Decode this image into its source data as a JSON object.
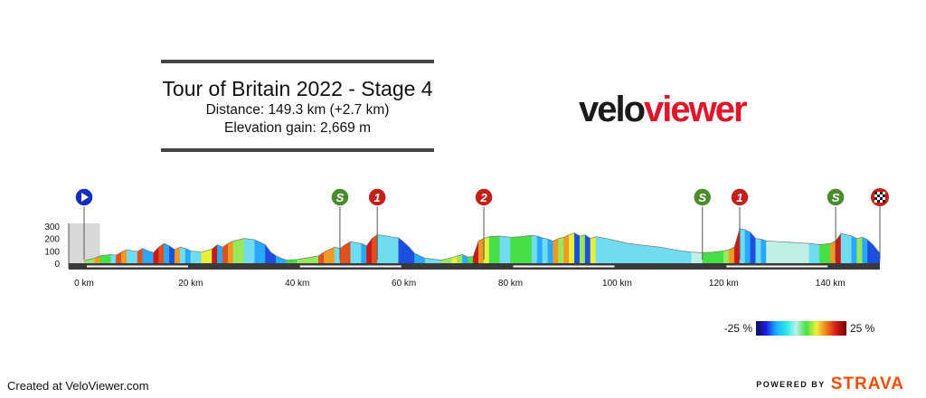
{
  "header": {
    "title": "Tour of Britain 2022 - Stage 4",
    "distance": "Distance: 149.3 km (+2.7 km)",
    "elevation": "Elevation gain: 2,669 m"
  },
  "logo": {
    "part1": "velo",
    "part2": "viewer",
    "colors": {
      "part1": "#1a1a1a",
      "part2": "#e0172b"
    }
  },
  "chart_data": {
    "type": "area",
    "title": "Tour of Britain 2022 - Stage 4",
    "x_unit": "km",
    "xlim": [
      0,
      149.3
    ],
    "ylim": [
      0,
      300
    ],
    "y_ticks": [
      300,
      200,
      100,
      0
    ],
    "x_ticks": [
      0,
      20,
      40,
      60,
      80,
      100,
      120,
      140
    ],
    "x_tick_labels": [
      "0 km",
      "20 km",
      "40 km",
      "60 km",
      "80 km",
      "100 km",
      "120 km",
      "140 km"
    ],
    "series": [
      {
        "x": [
          0,
          2,
          3,
          5,
          6,
          7,
          8,
          9,
          10,
          11,
          12,
          13,
          14,
          15,
          16,
          17,
          18,
          19,
          20,
          22,
          24,
          25,
          26,
          27,
          28,
          30,
          32,
          34,
          35,
          36,
          37,
          38,
          40,
          42,
          44,
          45,
          46,
          47,
          48,
          49,
          50,
          51,
          52,
          53,
          54,
          55,
          56,
          57,
          58,
          59,
          60,
          61,
          62,
          64,
          66,
          67,
          68,
          69,
          70,
          71,
          72,
          73,
          74,
          75,
          76,
          78,
          80,
          82,
          84,
          85,
          86,
          87,
          88,
          89,
          90,
          91,
          92,
          93,
          94,
          95,
          96,
          98,
          100,
          102,
          104,
          106,
          108,
          110,
          112,
          114,
          116,
          118,
          120,
          121,
          122,
          123,
          124,
          125,
          126,
          127,
          128,
          130,
          132,
          134,
          136,
          138,
          140,
          141,
          142,
          143,
          144,
          145,
          146,
          147,
          148,
          149.3
        ],
        "y": [
          20,
          40,
          60,
          70,
          65,
          90,
          110,
          100,
          95,
          120,
          100,
          85,
          130,
          160,
          140,
          110,
          130,
          120,
          100,
          90,
          115,
          150,
          130,
          160,
          180,
          200,
          190,
          150,
          90,
          60,
          40,
          25,
          30,
          45,
          60,
          90,
          110,
          130,
          120,
          150,
          175,
          165,
          160,
          140,
          200,
          230,
          225,
          218,
          210,
          205,
          170,
          130,
          80,
          40,
          30,
          25,
          35,
          45,
          60,
          70,
          50,
          55,
          180,
          200,
          215,
          220,
          210,
          215,
          225,
          220,
          205,
          195,
          180,
          200,
          210,
          230,
          245,
          220,
          230,
          200,
          215,
          200,
          180,
          160,
          150,
          140,
          130,
          115,
          100,
          90,
          85,
          90,
          100,
          110,
          130,
          280,
          270,
          250,
          200,
          195,
          180,
          175,
          170,
          165,
          160,
          150,
          160,
          180,
          240,
          230,
          220,
          200,
          210,
          190,
          150,
          80
        ]
      }
    ],
    "markers": [
      {
        "km": 0,
        "type": "start",
        "symbol": "▶",
        "color": "#1530b8"
      },
      {
        "km": 48,
        "type": "sprint",
        "symbol": "S",
        "color": "#4a8c2e"
      },
      {
        "km": 55,
        "type": "kom-cat1",
        "symbol": "1",
        "color": "#c3201b"
      },
      {
        "km": 75,
        "type": "kom-cat2",
        "symbol": "2",
        "color": "#c3201b"
      },
      {
        "km": 116,
        "type": "sprint",
        "symbol": "S",
        "color": "#4a8c2e"
      },
      {
        "km": 123,
        "type": "kom-cat1",
        "symbol": "1",
        "color": "#c3201b"
      },
      {
        "km": 141,
        "type": "sprint",
        "symbol": "S",
        "color": "#4a8c2e"
      },
      {
        "km": 149.3,
        "type": "finish",
        "symbol": "",
        "color": "#c3201b"
      }
    ],
    "gradient_legend": {
      "min": "-25 %",
      "max": "25 %"
    }
  },
  "footer": {
    "created": "Created at VeloViewer.com",
    "powered_by": "POWERED BY",
    "brand": "STRAVA",
    "brand_color": "#fc4c02"
  }
}
